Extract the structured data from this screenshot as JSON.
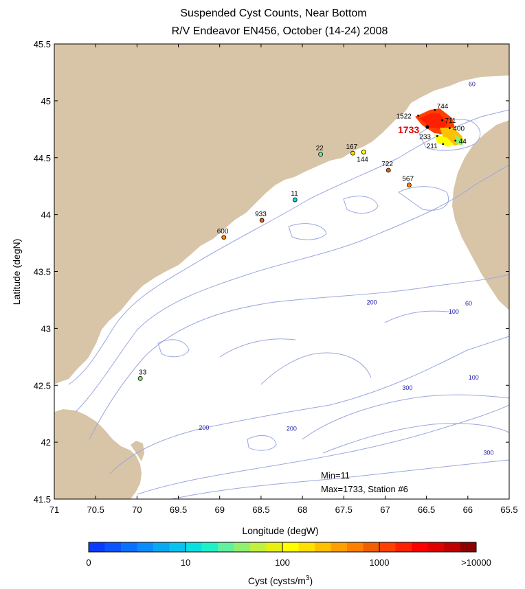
{
  "title_line1": "Suspended Cyst Counts, Near Bottom",
  "title_line2": "R/V Endeavor EN456, October (14-24) 2008",
  "xlabel": "Longitude (degW)",
  "ylabel": "Latitude (degN)",
  "colorbar_label": "Cyst (cysts/m",
  "colorbar_label_sup": "3",
  "colorbar_label_close": ")",
  "colors": {
    "land": "#d8c5a8",
    "isobath": "#9aa6e0",
    "isobath_label": "#1a1aa8",
    "max_label": "#e00000"
  },
  "chart_data": {
    "type": "scatter",
    "xlim": [
      71,
      65.5
    ],
    "ylim": [
      41.5,
      45.5
    ],
    "x_ticks": [
      "71",
      "70.5",
      "70",
      "69.5",
      "69",
      "68.5",
      "68",
      "67.5",
      "67",
      "66.5",
      "66",
      "65.5"
    ],
    "y_ticks": [
      "41.5",
      "42",
      "42.5",
      "43",
      "43.5",
      "44",
      "44.5",
      "45",
      "45.5"
    ],
    "stations": [
      {
        "lon": 69.96,
        "lat": 42.56,
        "value": "33"
      },
      {
        "lon": 68.95,
        "lat": 43.8,
        "value": "600"
      },
      {
        "lon": 68.49,
        "lat": 43.95,
        "value": "933"
      },
      {
        "lon": 68.09,
        "lat": 44.13,
        "value": "11"
      },
      {
        "lon": 67.78,
        "lat": 44.53,
        "value": "22"
      },
      {
        "lon": 67.39,
        "lat": 44.54,
        "value": "167"
      },
      {
        "lon": 67.26,
        "lat": 44.55,
        "value": "144"
      },
      {
        "lon": 66.96,
        "lat": 44.39,
        "value": "722"
      },
      {
        "lon": 66.71,
        "lat": 44.26,
        "value": "567"
      },
      {
        "lon": 66.6,
        "lat": 44.87,
        "value": "1522"
      },
      {
        "lon": 66.49,
        "lat": 44.77,
        "value": "1733"
      },
      {
        "lon": 66.4,
        "lat": 44.92,
        "value": "744"
      },
      {
        "lon": 66.31,
        "lat": 44.83,
        "value": "711"
      },
      {
        "lon": 66.22,
        "lat": 44.76,
        "value": "400"
      },
      {
        "lon": 66.37,
        "lat": 44.69,
        "value": "233"
      },
      {
        "lon": 66.3,
        "lat": 44.62,
        "value": "211"
      },
      {
        "lon": 66.15,
        "lat": 44.65,
        "value": "44"
      }
    ],
    "isobath_labels": [
      {
        "text": "60",
        "lon": 65.95,
        "lat": 45.13
      },
      {
        "text": "60",
        "lon": 65.99,
        "lat": 43.2
      },
      {
        "text": "100",
        "lon": 66.17,
        "lat": 43.13
      },
      {
        "text": "100",
        "lon": 65.93,
        "lat": 42.55
      },
      {
        "text": "200",
        "lon": 67.16,
        "lat": 43.21
      },
      {
        "text": "200",
        "lon": 69.19,
        "lat": 42.11
      },
      {
        "text": "200",
        "lon": 68.13,
        "lat": 42.1
      },
      {
        "text": "300",
        "lon": 66.73,
        "lat": 42.46
      },
      {
        "text": "300",
        "lon": 65.75,
        "lat": 41.89
      }
    ],
    "annotations": {
      "min": "Min=11",
      "max": "Max=1733, Station #6"
    },
    "colorbar": {
      "scale": "log",
      "ticks": [
        "0",
        "10",
        "100",
        "1000",
        ">10000"
      ],
      "colors": [
        "#0a3cff",
        "#0a55ff",
        "#0a70ff",
        "#0a8cff",
        "#0aa8f0",
        "#0ac2f0",
        "#0ae0e0",
        "#20f0c8",
        "#60f0a0",
        "#90f070",
        "#c0f040",
        "#e8f010",
        "#ffff00",
        "#ffe000",
        "#ffc000",
        "#ffa000",
        "#ff8000",
        "#f06000",
        "#ff4000",
        "#ff2000",
        "#ff0000",
        "#e00000",
        "#c00000",
        "#8c0000"
      ]
    }
  }
}
